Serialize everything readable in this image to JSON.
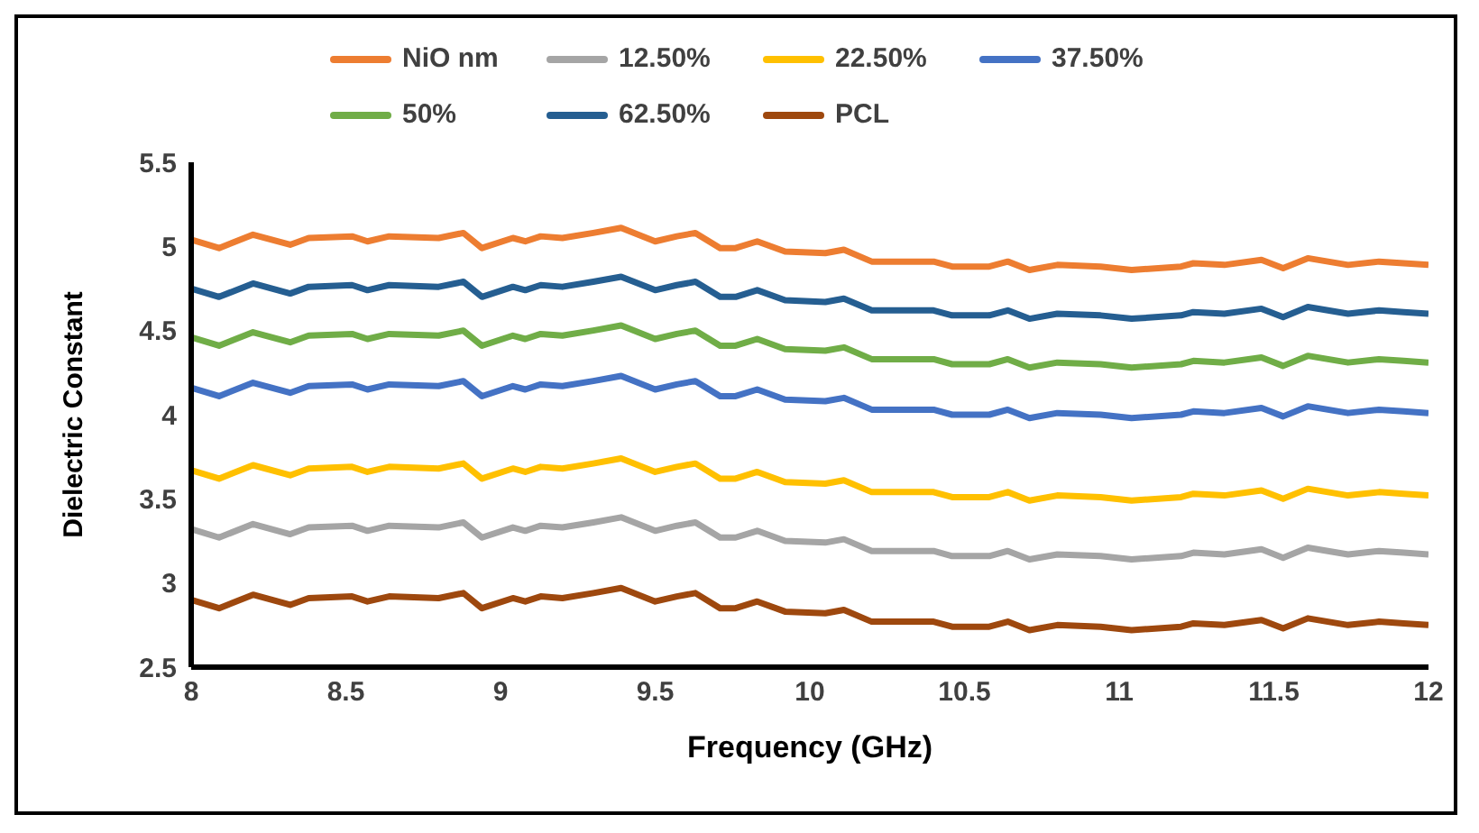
{
  "chart_data": {
    "type": "line",
    "xlabel": "Frequency (GHz)",
    "ylabel": "Dielectric Constant",
    "legend": "top",
    "marker": "none",
    "line_style": "solid",
    "grid": false,
    "xlim": [
      8,
      12
    ],
    "xticks": [
      8,
      8.5,
      9,
      9.5,
      10,
      10.5,
      11,
      11.5,
      12
    ],
    "ylim": [
      2.5,
      5.5
    ],
    "yticks": [
      2.5,
      3,
      3.5,
      4,
      4.5,
      5,
      5.5
    ],
    "x": [
      8,
      8.09,
      8.2,
      8.32,
      8.38,
      8.52,
      8.57,
      8.64,
      8.8,
      8.88,
      8.94,
      9.04,
      9.08,
      9.13,
      9.2,
      9.3,
      9.39,
      9.5,
      9.57,
      9.63,
      9.71,
      9.76,
      9.83,
      9.92,
      10.05,
      10.11,
      10.2,
      10.4,
      10.46,
      10.58,
      10.64,
      10.71,
      10.8,
      10.94,
      11.04,
      11.2,
      11.24,
      11.34,
      11.46,
      11.53,
      11.61,
      11.74,
      11.84,
      11.92,
      12
    ],
    "series": [
      {
        "name": "NiO nm",
        "color": "#ed7d31",
        "values": [
          5.04,
          4.99,
          5.07,
          5.01,
          5.05,
          5.06,
          5.03,
          5.06,
          5.05,
          5.08,
          4.99,
          5.05,
          5.03,
          5.06,
          5.05,
          5.08,
          5.11,
          5.03,
          5.06,
          5.08,
          4.99,
          4.99,
          5.03,
          4.97,
          4.96,
          4.98,
          4.91,
          4.91,
          4.88,
          4.88,
          4.91,
          4.86,
          4.89,
          4.88,
          4.86,
          4.88,
          4.9,
          4.89,
          4.92,
          4.87,
          4.93,
          4.89,
          4.91,
          4.9,
          4.89
        ]
      },
      {
        "name": "12.50%",
        "color": "#a5a5a5",
        "values": [
          3.32,
          3.27,
          3.35,
          3.29,
          3.33,
          3.34,
          3.31,
          3.34,
          3.33,
          3.36,
          3.27,
          3.33,
          3.31,
          3.34,
          3.33,
          3.36,
          3.39,
          3.31,
          3.34,
          3.36,
          3.27,
          3.27,
          3.31,
          3.25,
          3.24,
          3.26,
          3.19,
          3.19,
          3.16,
          3.16,
          3.19,
          3.14,
          3.17,
          3.16,
          3.14,
          3.16,
          3.18,
          3.17,
          3.2,
          3.15,
          3.21,
          3.17,
          3.19,
          3.18,
          3.17
        ]
      },
      {
        "name": "22.50%",
        "color": "#ffc000",
        "values": [
          3.67,
          3.62,
          3.7,
          3.64,
          3.68,
          3.69,
          3.66,
          3.69,
          3.68,
          3.71,
          3.62,
          3.68,
          3.66,
          3.69,
          3.68,
          3.71,
          3.74,
          3.66,
          3.69,
          3.71,
          3.62,
          3.62,
          3.66,
          3.6,
          3.59,
          3.61,
          3.54,
          3.54,
          3.51,
          3.51,
          3.54,
          3.49,
          3.52,
          3.51,
          3.49,
          3.51,
          3.53,
          3.52,
          3.55,
          3.5,
          3.56,
          3.52,
          3.54,
          3.53,
          3.52
        ]
      },
      {
        "name": "37.50%",
        "color": "#4472c4",
        "values": [
          4.16,
          4.11,
          4.19,
          4.13,
          4.17,
          4.18,
          4.15,
          4.18,
          4.17,
          4.2,
          4.11,
          4.17,
          4.15,
          4.18,
          4.17,
          4.2,
          4.23,
          4.15,
          4.18,
          4.2,
          4.11,
          4.11,
          4.15,
          4.09,
          4.08,
          4.1,
          4.03,
          4.03,
          4.0,
          4.0,
          4.03,
          3.98,
          4.01,
          4.0,
          3.98,
          4.0,
          4.02,
          4.01,
          4.04,
          3.99,
          4.05,
          4.01,
          4.03,
          4.02,
          4.01
        ]
      },
      {
        "name": "50%",
        "color": "#70ad47",
        "values": [
          4.46,
          4.41,
          4.49,
          4.43,
          4.47,
          4.48,
          4.45,
          4.48,
          4.47,
          4.5,
          4.41,
          4.47,
          4.45,
          4.48,
          4.47,
          4.5,
          4.53,
          4.45,
          4.48,
          4.5,
          4.41,
          4.41,
          4.45,
          4.39,
          4.38,
          4.4,
          4.33,
          4.33,
          4.3,
          4.3,
          4.33,
          4.28,
          4.31,
          4.3,
          4.28,
          4.3,
          4.32,
          4.31,
          4.34,
          4.29,
          4.35,
          4.31,
          4.33,
          4.32,
          4.31
        ]
      },
      {
        "name": "62.50%",
        "color": "#255e91",
        "values": [
          4.75,
          4.7,
          4.78,
          4.72,
          4.76,
          4.77,
          4.74,
          4.77,
          4.76,
          4.79,
          4.7,
          4.76,
          4.74,
          4.77,
          4.76,
          4.79,
          4.82,
          4.74,
          4.77,
          4.79,
          4.7,
          4.7,
          4.74,
          4.68,
          4.67,
          4.69,
          4.62,
          4.62,
          4.59,
          4.59,
          4.62,
          4.57,
          4.6,
          4.59,
          4.57,
          4.59,
          4.61,
          4.6,
          4.63,
          4.58,
          4.64,
          4.6,
          4.62,
          4.61,
          4.6
        ]
      },
      {
        "name": "PCL",
        "color": "#9e480e",
        "values": [
          2.9,
          2.85,
          2.93,
          2.87,
          2.91,
          2.92,
          2.89,
          2.92,
          2.91,
          2.94,
          2.85,
          2.91,
          2.89,
          2.92,
          2.91,
          2.94,
          2.97,
          2.89,
          2.92,
          2.94,
          2.85,
          2.85,
          2.89,
          2.83,
          2.82,
          2.84,
          2.77,
          2.77,
          2.74,
          2.74,
          2.77,
          2.72,
          2.75,
          2.74,
          2.72,
          2.74,
          2.76,
          2.75,
          2.78,
          2.73,
          2.79,
          2.75,
          2.77,
          2.76,
          2.75
        ]
      }
    ]
  }
}
